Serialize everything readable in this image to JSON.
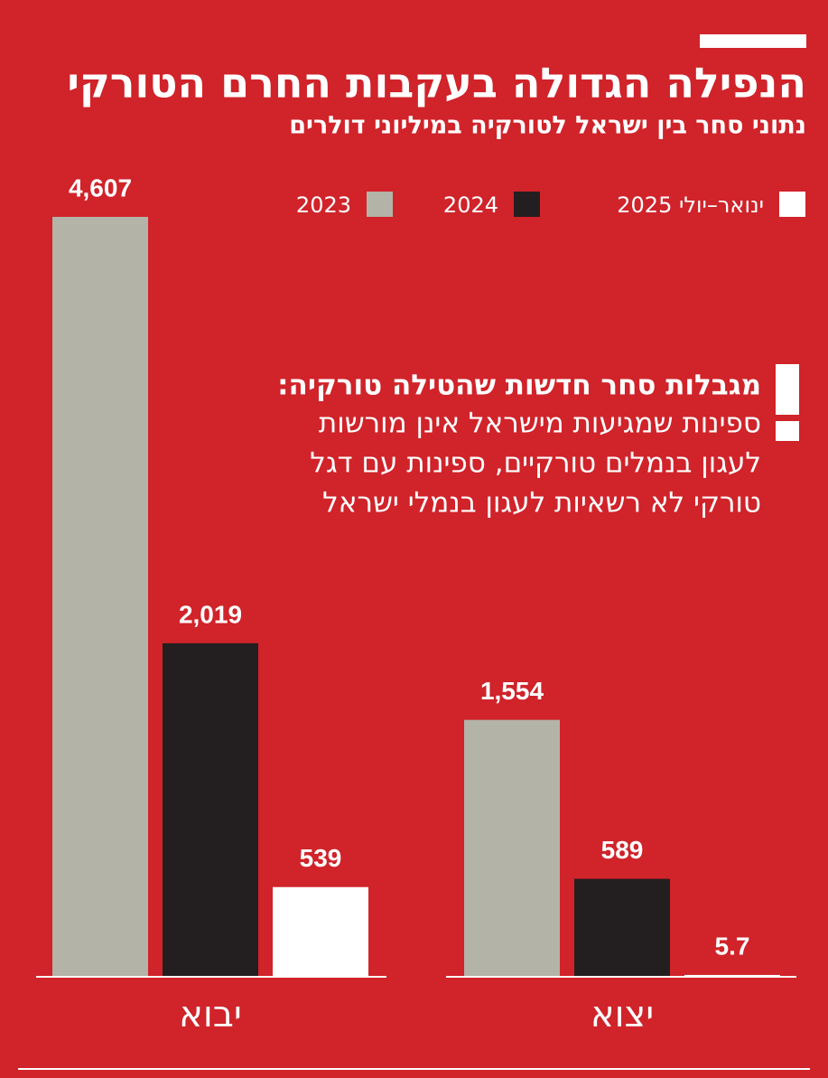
{
  "chart_data": {
    "type": "bar",
    "title": "הנפילה הגדולה בעקבות החרם הטורקי",
    "subtitle": "נתוני סחר בין ישראל לטורקיה במיליוני דולרים",
    "categories": [
      "יבוא",
      "יצוא"
    ],
    "series": [
      {
        "name": "2023",
        "color": "#b3b3a8",
        "values": [
          4607,
          1554
        ],
        "value_labels": [
          "4,607",
          "1,554"
        ]
      },
      {
        "name": "2024",
        "color": "#231f20",
        "values": [
          2019,
          589
        ],
        "value_labels": [
          "2,019",
          "589"
        ]
      },
      {
        "name": "ינואר–יולי 2025",
        "color": "#ffffff",
        "values": [
          539,
          5.7
        ]
      }
    ],
    "annotation": {
      "title": "מגבלות סחר חדשות שהטילה טורקיה:",
      "lines": [
        "ספינות שמגיעות מישראל אינן מורשות",
        "לעגון בנמלים טורקיים, ספינות עם דגל",
        "טורקי לא רשאיות לעגון בנמלי ישראל"
      ]
    }
  }
}
